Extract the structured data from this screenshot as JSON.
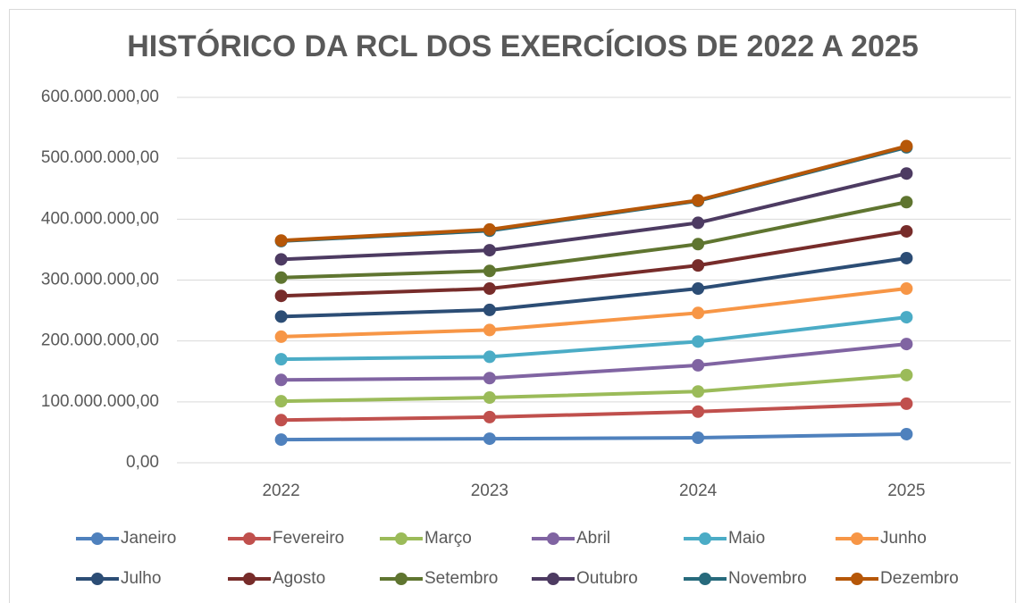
{
  "chart_data": {
    "type": "line",
    "title": "HISTÓRICO DA RCL DOS EXERCÍCIOS DE 2022 A 2025",
    "categories": [
      "2022",
      "2023",
      "2024",
      "2025"
    ],
    "ylim": [
      0,
      600000000
    ],
    "yticks": [
      {
        "value": 0,
        "label": "0,00"
      },
      {
        "value": 100000000,
        "label": "100.000.000,00"
      },
      {
        "value": 200000000,
        "label": "200.000.000,00"
      },
      {
        "value": 300000000,
        "label": "300.000.000,00"
      },
      {
        "value": 400000000,
        "label": "400.000.000,00"
      },
      {
        "value": 500000000,
        "label": "500.000.000,00"
      },
      {
        "value": 600000000,
        "label": "600.000.000,00"
      }
    ],
    "grid": true,
    "legend": "bottom",
    "series": [
      {
        "name": "Janeiro",
        "color": "#4f81bd",
        "values": [
          38000000,
          39500000,
          41000000,
          47000000
        ]
      },
      {
        "name": "Fevereiro",
        "color": "#c0504d",
        "values": [
          70000000,
          75000000,
          84000000,
          97000000
        ]
      },
      {
        "name": "Março",
        "color": "#9bbb59",
        "values": [
          101000000,
          107000000,
          117000000,
          144000000
        ]
      },
      {
        "name": "Abril",
        "color": "#8064a2",
        "values": [
          136000000,
          139000000,
          160000000,
          195000000
        ]
      },
      {
        "name": "Maio",
        "color": "#4bacc6",
        "values": [
          170000000,
          174000000,
          199000000,
          239000000
        ]
      },
      {
        "name": "Junho",
        "color": "#f79646",
        "values": [
          207000000,
          218000000,
          246000000,
          286000000
        ]
      },
      {
        "name": "Julho",
        "color": "#2c4d75",
        "values": [
          240000000,
          251000000,
          286000000,
          336000000
        ]
      },
      {
        "name": "Agosto",
        "color": "#772c2a",
        "values": [
          274000000,
          286000000,
          324000000,
          380000000
        ]
      },
      {
        "name": "Setembro",
        "color": "#5f7530",
        "values": [
          304000000,
          315000000,
          359000000,
          428000000
        ]
      },
      {
        "name": "Outubro",
        "color": "#4d3b62",
        "values": [
          334000000,
          349000000,
          394000000,
          475000000
        ]
      },
      {
        "name": "Novembro",
        "color": "#276a7c",
        "values": [
          364000000,
          381000000,
          430000000,
          518000000
        ]
      },
      {
        "name": "Dezembro",
        "color": "#b65708",
        "values": [
          365000000,
          383000000,
          431000000,
          520000000
        ]
      }
    ]
  }
}
